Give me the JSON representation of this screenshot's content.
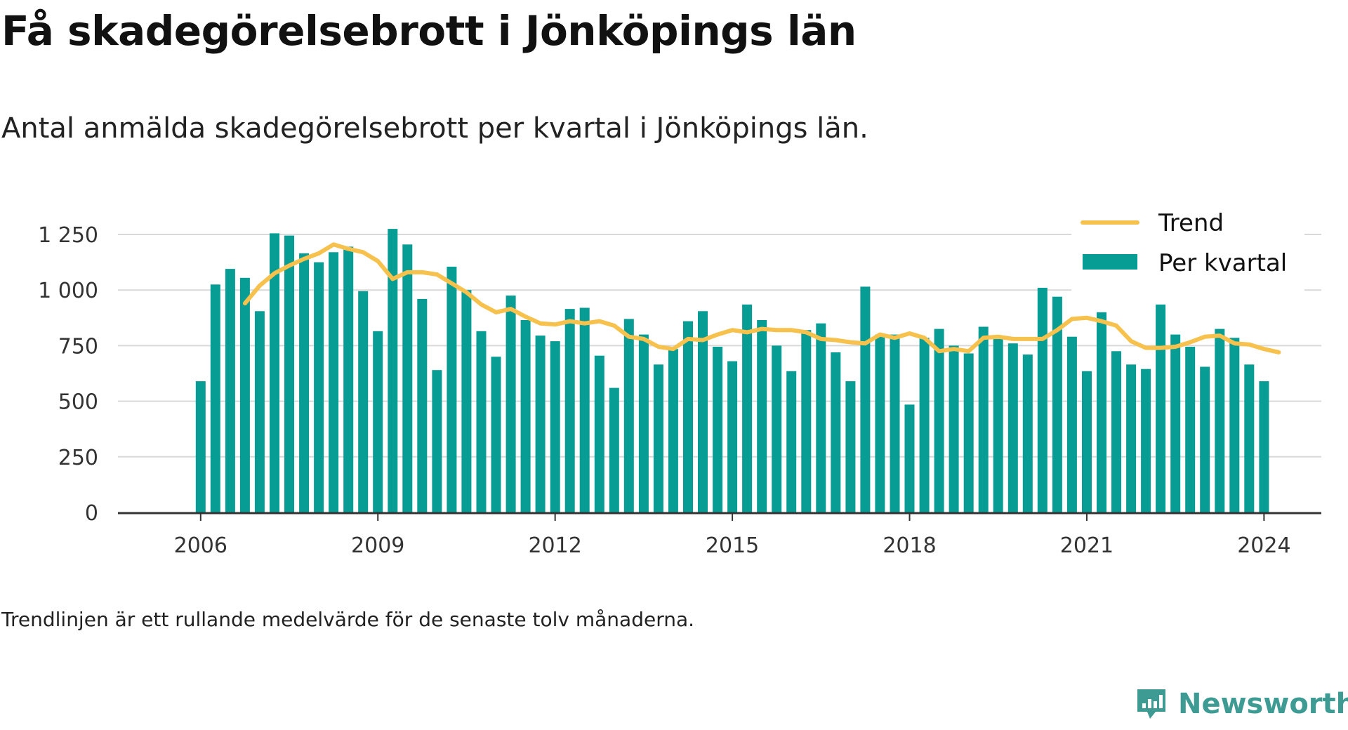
{
  "header": {
    "title": "Få skadegörelsebrott i Jönköpings län",
    "subtitle": "Antal anmälda skadegörelsebrott per kvartal i Jönköpings län."
  },
  "footnote": "Trendlinjen är ett rullande medelvärde för de senaste tolv månaderna.",
  "brand": {
    "name": "Newsworthy",
    "color": "#3d9b94",
    "icon": "newsworthy-logo-icon"
  },
  "colors": {
    "bar": "#079c94",
    "trend": "#f7c14d",
    "grid": "#d9d9d9",
    "axis": "#333333"
  },
  "chart_data": {
    "type": "bar",
    "x_start": 2006.0,
    "x_step": 0.25,
    "xticks": [
      2006,
      2009,
      2012,
      2015,
      2018,
      2021,
      2024
    ],
    "xtick_labels": [
      "2006",
      "2009",
      "2012",
      "2015",
      "2018",
      "2021",
      "2024"
    ],
    "yticks": [
      0,
      250,
      500,
      750,
      1000,
      1250
    ],
    "ytick_labels": [
      "0",
      "250",
      "500",
      "750",
      "1 000",
      "1 250"
    ],
    "ylim": [
      0,
      1300
    ],
    "xlim": [
      2004.6,
      2024.97
    ],
    "grid": true,
    "legend_position": "top-right",
    "series": [
      {
        "name": "Per kvartal",
        "type": "bar",
        "values": [
          590,
          1025,
          1095,
          1055,
          905,
          1255,
          1245,
          1165,
          1125,
          1170,
          1195,
          995,
          815,
          1275,
          1205,
          960,
          640,
          1105,
          1000,
          815,
          700,
          975,
          865,
          795,
          770,
          915,
          920,
          705,
          560,
          870,
          800,
          665,
          735,
          860,
          905,
          745,
          680,
          935,
          865,
          750,
          635,
          820,
          850,
          720,
          590,
          1015,
          800,
          800,
          485,
          785,
          825,
          750,
          715,
          835,
          780,
          760,
          710,
          1010,
          970,
          790,
          635,
          900,
          725,
          665,
          645,
          935,
          800,
          745,
          655,
          825,
          785,
          665,
          590
        ]
      },
      {
        "name": "Trend",
        "type": "line",
        "x_start": 2006.75,
        "values": [
          940,
          1020,
          1075,
          1110,
          1140,
          1165,
          1205,
          1185,
          1170,
          1130,
          1050,
          1080,
          1080,
          1070,
          1030,
          990,
          935,
          900,
          915,
          880,
          850,
          845,
          860,
          850,
          860,
          840,
          790,
          780,
          745,
          735,
          780,
          775,
          800,
          820,
          810,
          825,
          820,
          820,
          810,
          780,
          775,
          765,
          760,
          800,
          785,
          805,
          785,
          725,
          735,
          725,
          785,
          790,
          780,
          780,
          780,
          820,
          870,
          875,
          860,
          840,
          770,
          740,
          740,
          745,
          765,
          790,
          795,
          760,
          755,
          735,
          720
        ]
      }
    ]
  }
}
